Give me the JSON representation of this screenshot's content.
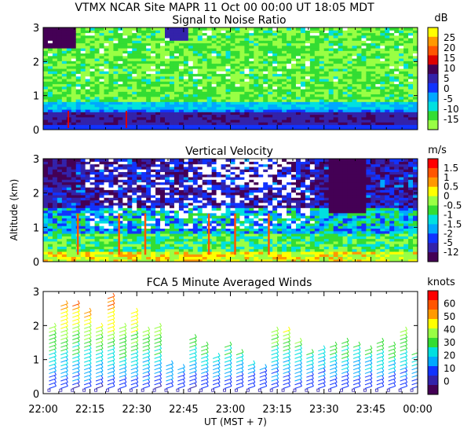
{
  "header": {
    "line1": "VTMX   NCAR Site   MAPR 11 Oct 00   00:00 UT   18:05   MDT"
  },
  "x_axis": {
    "ticks": [
      "22:00",
      "22:15",
      "22:30",
      "22:45",
      "23:00",
      "23:15",
      "23:30",
      "23:45",
      "00:00"
    ],
    "label": "UT   (MST + 7)"
  },
  "shared_ylabel": "Altitude (km)",
  "chart_data": [
    {
      "type": "heatmap",
      "title": "Signal to Noise Ratio",
      "y_ticks": [
        "0",
        "1",
        "2",
        "3"
      ],
      "ylim": [
        0,
        3
      ],
      "colorbar_unit": "dB",
      "colorbar_labels": [
        "25",
        "20",
        "15",
        "10",
        "5",
        "0",
        "-5",
        "-10",
        "-15"
      ],
      "colorbar_colors": [
        "#ffff00",
        "#ff9900",
        "#ff5500",
        "#dd0000",
        "#440055",
        "#3322aa",
        "#1133ff",
        "#00a8ff",
        "#00e0e0",
        "#33dd33",
        "#99ff44"
      ],
      "grid": false
    },
    {
      "type": "heatmap",
      "title": "Vertical Velocity",
      "y_ticks": [
        "0",
        "1",
        "2",
        "3"
      ],
      "ylim": [
        0,
        3
      ],
      "colorbar_unit": "m/s",
      "colorbar_labels": [
        "1.5",
        "1",
        "0.5",
        "0",
        "-0.5",
        "-1",
        "-1.5",
        "-2",
        "-5",
        "-12"
      ],
      "colorbar_colors": [
        "#ff0000",
        "#ff5500",
        "#ff9900",
        "#ffff00",
        "#99ff44",
        "#33dd33",
        "#00e0e0",
        "#00a8ff",
        "#1133ff",
        "#3322aa",
        "#440055"
      ],
      "grid": false
    },
    {
      "type": "scatter",
      "title": "FCA 5 Minute Averaged Winds",
      "y_ticks": [
        "0",
        "1",
        "2",
        "3"
      ],
      "ylim": [
        0,
        3
      ],
      "colorbar_unit": "knots",
      "colorbar_labels": [
        "60",
        "50",
        "40",
        "30",
        "20",
        "10",
        "0"
      ],
      "colorbar_colors": [
        "#ff0000",
        "#ff5500",
        "#ff9900",
        "#ffff00",
        "#99ff44",
        "#33dd33",
        "#00e0e0",
        "#00a8ff",
        "#1133ff",
        "#3322aa",
        "#440055"
      ],
      "grid": false
    }
  ]
}
